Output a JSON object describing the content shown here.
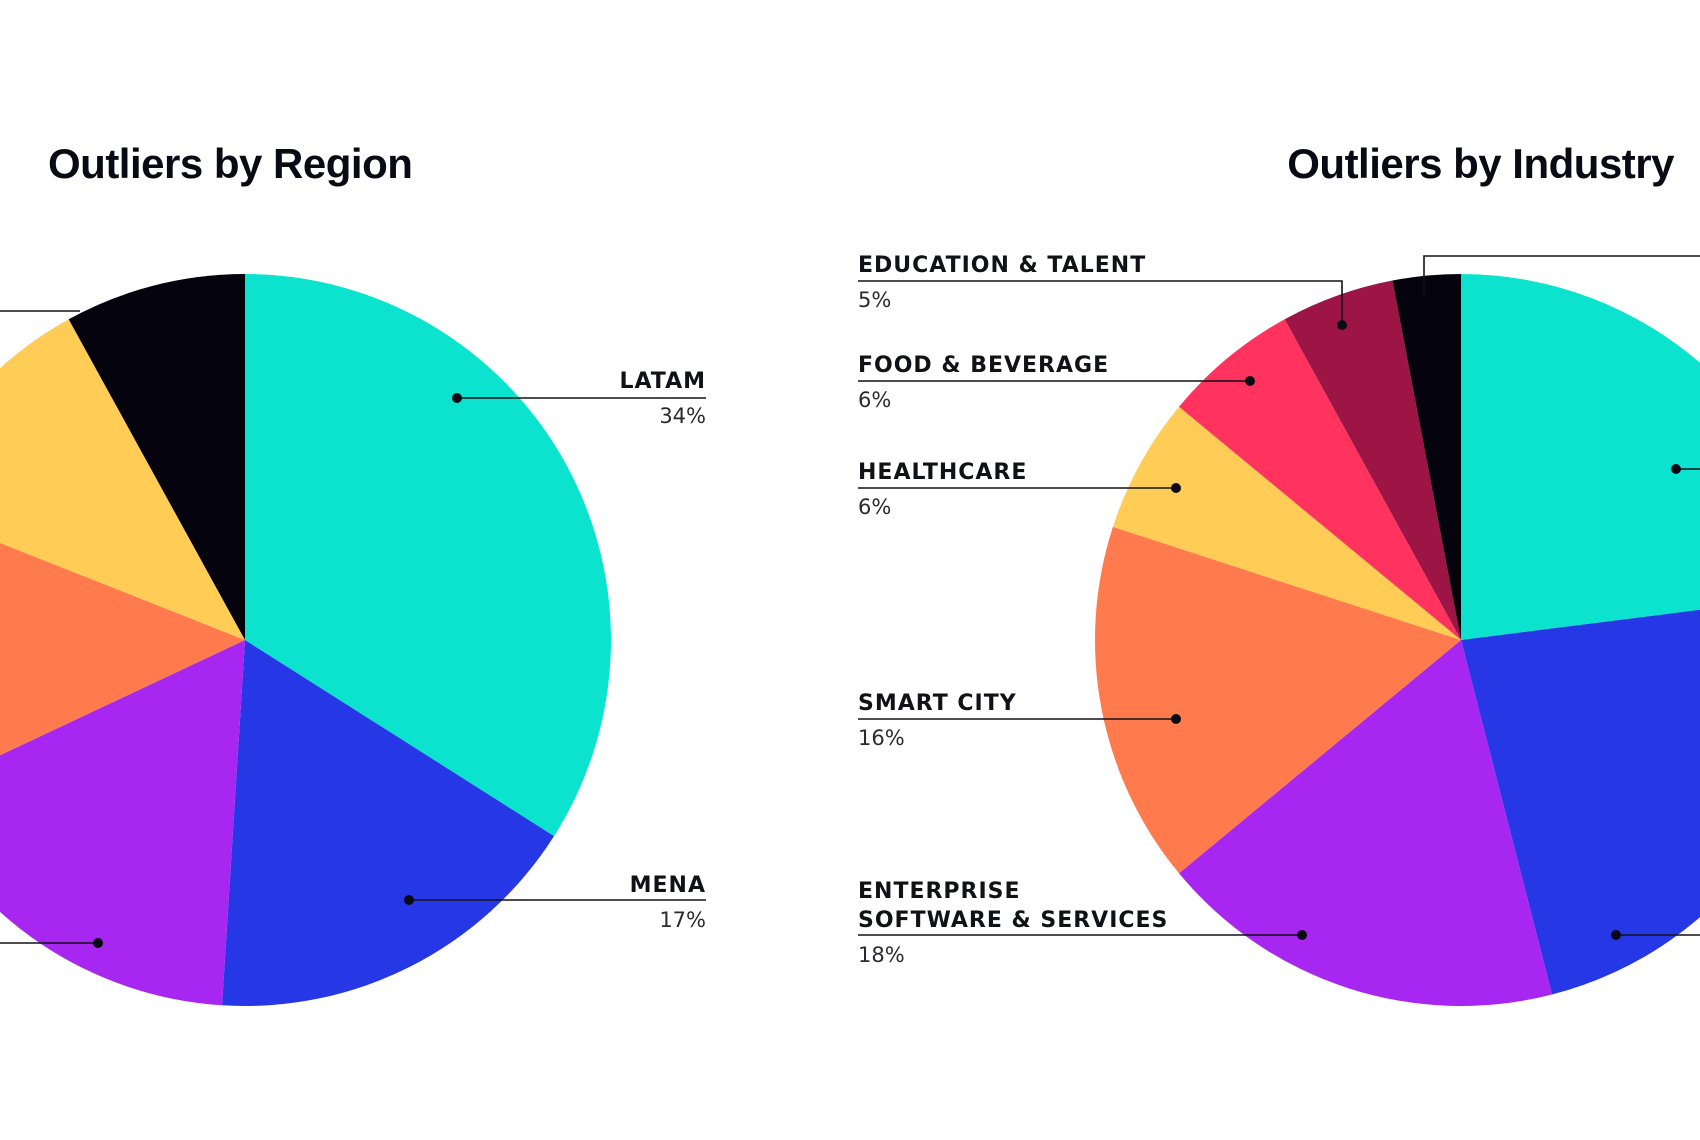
{
  "chart_data": [
    {
      "type": "pie",
      "title": "Outliers by Region",
      "slices": [
        {
          "label": "LATAM",
          "value_label": "34%",
          "value": 34,
          "color": "#0ce3cf"
        },
        {
          "label": "MENA",
          "value_label": "17%",
          "value": 17,
          "color": "#2637e6"
        },
        {
          "label": "",
          "value_label": "",
          "value": 17,
          "color": "#a827f0"
        },
        {
          "label": "",
          "value_label": "",
          "value": 13,
          "color": "#ff7a4d"
        },
        {
          "label": "",
          "value_label": "",
          "value": 11,
          "color": "#ffcd55"
        },
        {
          "label": "",
          "value_label": "",
          "value": 8,
          "color": "#05030e"
        }
      ]
    },
    {
      "type": "pie",
      "title": "Outliers by Industry",
      "slices": [
        {
          "label": "",
          "value_label": "",
          "value": 23,
          "color": "#0ce3cf"
        },
        {
          "label": "",
          "value_label": "",
          "value": 23,
          "color": "#2637e6"
        },
        {
          "label": "ENTERPRISE SOFTWARE & SERVICES",
          "value_label": "18%",
          "value": 18,
          "color": "#a827f0"
        },
        {
          "label": "SMART CITY",
          "value_label": "16%",
          "value": 16,
          "color": "#ff7a4d"
        },
        {
          "label": "HEALTHCARE",
          "value_label": "6%",
          "value": 6,
          "color": "#ffcd55"
        },
        {
          "label": "FOOD & BEVERAGE",
          "value_label": "6%",
          "value": 6,
          "color": "#ff335e"
        },
        {
          "label": "EDUCATION & TALENT",
          "value_label": "5%",
          "value": 5,
          "color": "#9c1545"
        },
        {
          "label": "",
          "value_label": "",
          "value": 3,
          "color": "#05030e"
        }
      ]
    }
  ],
  "colors": {
    "background": "#ffffff",
    "text": "#111118",
    "leader": "#111118"
  }
}
